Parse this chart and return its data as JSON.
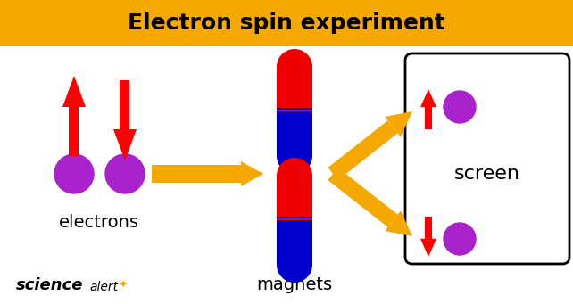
{
  "title": "Electron spin experiment",
  "title_bg": "#F5A800",
  "title_fontsize": 18,
  "bg_color": "#FFFFFF",
  "electron_color": "#AA22CC",
  "arrow_color": "#FF0000",
  "magnet_red": "#EE0000",
  "magnet_blue": "#0000CC",
  "flow_arrow_color": "#F5A800",
  "screen_text": "screen",
  "electrons_text": "electrons",
  "magnets_text": "magnets",
  "figw": 6.42,
  "figh": 3.41,
  "dpi": 100
}
